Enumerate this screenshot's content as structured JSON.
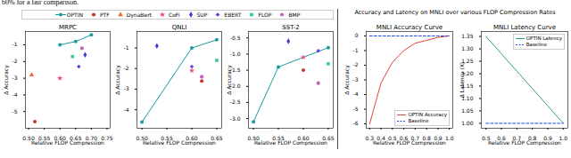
{
  "caption_fragment": "60% for a fair comparison.",
  "panel_title": "Accuracy and Latency on MNLI over various FLOP Compression Rates",
  "chart_data": [
    {
      "type": "scatter",
      "title": "MRPC",
      "xlabel": "Relative FLOP Compression",
      "ylabel": "Δ Accuracy",
      "xlim": [
        0.49,
        0.76
      ],
      "xticks": [
        {
          "value": 0.5,
          "label": "0.50"
        },
        {
          "value": 0.55,
          "label": "0.55"
        },
        {
          "value": 0.6,
          "label": "0.60"
        },
        {
          "value": 0.65,
          "label": "0.65"
        },
        {
          "value": 0.7,
          "label": "0.70"
        },
        {
          "value": 0.75,
          "label": "0.75"
        }
      ],
      "ylim": [
        -6.0,
        -0.2
      ],
      "yticks": [
        -1,
        -2,
        -3,
        -4,
        -5
      ],
      "legend": "top",
      "series": [
        {
          "name": "OPTIN",
          "type": "line",
          "color": "#1a9c9c",
          "marker": "circle",
          "x": [
            0.6,
            0.65,
            0.7
          ],
          "values": [
            -1.0,
            -0.8,
            -0.4
          ]
        },
        {
          "name": "PTF",
          "type": "scatter",
          "color": "#c0392b",
          "marker": "circle",
          "x": [
            0.52
          ],
          "values": [
            -5.6
          ]
        },
        {
          "name": "DynaBert",
          "type": "scatter",
          "color": "#e8702a",
          "marker": "triangle",
          "x": [
            0.51
          ],
          "values": [
            -2.8
          ]
        },
        {
          "name": "CoFi",
          "type": "scatter",
          "color": "#e74c8b",
          "marker": "star",
          "x": [
            0.6
          ],
          "values": [
            -3.0
          ]
        },
        {
          "name": "SUP",
          "type": "scatter",
          "color": "#3b3bd6",
          "marker": "diamond",
          "x": [
            0.68
          ],
          "values": [
            -1.6
          ]
        },
        {
          "name": "EBERT",
          "type": "scatter",
          "color": "#6a3fd6",
          "marker": "diamond2",
          "x": [
            0.66
          ],
          "values": [
            -2.3
          ]
        },
        {
          "name": "FLOP",
          "type": "scatter",
          "color": "#2ecc9a",
          "marker": "square",
          "x": [
            0.64
          ],
          "values": [
            -1.7
          ]
        },
        {
          "name": "BMP",
          "type": "scatter",
          "color": "#c266c2",
          "marker": "hexagon",
          "x": [
            0.67
          ],
          "values": [
            -1.2
          ]
        }
      ]
    },
    {
      "type": "scatter",
      "title": "QNLI",
      "xlabel": "Relative FLOP Compression",
      "ylabel": "Δ Accuracy",
      "xlim": [
        0.49,
        0.66
      ],
      "xticks": [
        {
          "value": 0.5,
          "label": "0.50"
        },
        {
          "value": 0.55,
          "label": "0.55"
        },
        {
          "value": 0.6,
          "label": "0.60"
        },
        {
          "value": 0.65,
          "label": "0.65"
        }
      ],
      "ylim": [
        -4.9,
        -0.2
      ],
      "yticks": [
        -1,
        -2,
        -3,
        -4
      ],
      "series": [
        {
          "name": "OPTIN",
          "type": "line",
          "color": "#1a9c9c",
          "marker": "circle",
          "x": [
            0.5,
            0.6,
            0.65
          ],
          "values": [
            -4.6,
            -1.0,
            -0.6
          ]
        },
        {
          "name": "SUP",
          "type": "scatter",
          "color": "#3b3bd6",
          "marker": "diamond",
          "x": [
            0.53
          ],
          "values": [
            -0.9
          ]
        },
        {
          "name": "EBERT",
          "type": "scatter",
          "color": "#6a3fd6",
          "marker": "diamond2",
          "x": [
            0.6
          ],
          "values": [
            -1.9
          ]
        },
        {
          "name": "CoFi",
          "type": "scatter",
          "color": "#e74c8b",
          "marker": "star",
          "x": [
            0.6
          ],
          "values": [
            -2.1
          ]
        },
        {
          "name": "FLOP",
          "type": "scatter",
          "color": "#2ecc9a",
          "marker": "square",
          "x": [
            0.65
          ],
          "values": [
            -1.6
          ]
        },
        {
          "name": "BMP",
          "type": "scatter",
          "color": "#c266c2",
          "marker": "hexagon",
          "x": [
            0.62
          ],
          "values": [
            -2.4
          ]
        },
        {
          "name": "PTF",
          "type": "scatter",
          "color": "#c0392b",
          "marker": "circle",
          "x": [
            0.62
          ],
          "values": [
            -2.6
          ]
        }
      ]
    },
    {
      "type": "scatter",
      "title": "SST-2",
      "xlabel": "Relative FLOP Compression",
      "ylabel": "Δ Accuracy",
      "xlim": [
        0.49,
        0.66
      ],
      "xticks": [
        {
          "value": 0.5,
          "label": "0.50"
        },
        {
          "value": 0.55,
          "label": "0.55"
        },
        {
          "value": 0.6,
          "label": "0.60"
        },
        {
          "value": 0.65,
          "label": "0.65"
        }
      ],
      "ylim": [
        -3.3,
        -0.3
      ],
      "yticks": [
        -0.5,
        {
          "value": -1,
          "label": "-1.0"
        },
        -1.5,
        {
          "value": -2,
          "label": "-2.0"
        },
        -2.5,
        {
          "value": -3,
          "label": "-3.0"
        }
      ],
      "series": [
        {
          "name": "OPTIN",
          "type": "line",
          "color": "#1a9c9c",
          "marker": "circle",
          "x": [
            0.5,
            0.55,
            0.65
          ],
          "values": [
            -3.1,
            -1.4,
            -0.8
          ]
        },
        {
          "name": "SUP",
          "type": "scatter",
          "color": "#3b3bd6",
          "marker": "diamond",
          "x": [
            0.57
          ],
          "values": [
            -0.6
          ]
        },
        {
          "name": "EBERT",
          "type": "scatter",
          "color": "#6a3fd6",
          "marker": "diamond2",
          "x": [
            0.63
          ],
          "values": [
            -0.9
          ]
        },
        {
          "name": "CoFi",
          "type": "scatter",
          "color": "#e74c8b",
          "marker": "star",
          "x": [
            0.6
          ],
          "values": [
            -1.1
          ]
        },
        {
          "name": "FLOP",
          "type": "scatter",
          "color": "#2ecc9a",
          "marker": "square",
          "x": [
            0.65
          ],
          "values": [
            -1.3
          ]
        },
        {
          "name": "PTF",
          "type": "scatter",
          "color": "#c0392b",
          "marker": "circle",
          "x": [
            0.6
          ],
          "values": [
            -1.5
          ]
        },
        {
          "name": "BMP",
          "type": "scatter",
          "color": "#c266c2",
          "marker": "hexagon",
          "x": [
            0.63
          ],
          "values": [
            -1.9
          ]
        }
      ]
    },
    {
      "type": "line",
      "title": "MNLI Accuracy Curve",
      "xlabel": "Relative FLOP Compression",
      "ylabel": "Δ Accuracy",
      "xlim": [
        0.27,
        1.03
      ],
      "xticks": [
        0.3,
        0.4,
        0.5,
        0.6,
        0.7,
        0.8,
        0.9,
        {
          "value": 1.0,
          "label": "1.0"
        }
      ],
      "ylim": [
        -6.3,
        0.3
      ],
      "yticks": [
        0,
        -1,
        -2,
        -3,
        -4,
        -5,
        -6
      ],
      "legend": "lower right",
      "series": [
        {
          "name": "OPTIN Accuracy",
          "type": "line",
          "color": "#e0443a",
          "line_style": "solid",
          "x": [
            0.3,
            0.4,
            0.5,
            0.6,
            0.7,
            0.8,
            0.9,
            1.0
          ],
          "values": [
            -6.0,
            -3.2,
            -1.8,
            -1.0,
            -0.5,
            -0.3,
            -0.1,
            0.0
          ]
        },
        {
          "name": "Baseline",
          "type": "line",
          "color": "#1f4fd6",
          "line_style": "dashed",
          "x": [
            0.3,
            1.0
          ],
          "values": [
            0,
            0
          ]
        }
      ]
    },
    {
      "type": "line",
      "title": "MNLI Latency Curve",
      "xlabel": "Relative FLOP Compression",
      "ylabel": "Δ Latency (X)",
      "xlim": [
        0.47,
        1.03
      ],
      "xticks": [
        0.5,
        0.6,
        0.7,
        0.8,
        0.9,
        {
          "value": 1.0,
          "label": "1.0"
        }
      ],
      "ylim": [
        0.98,
        1.37
      ],
      "yticks": [
        {
          "value": 1.0,
          "label": "1.00"
        },
        1.05,
        {
          "value": 1.1,
          "label": "1.10"
        },
        1.15,
        {
          "value": 1.2,
          "label": "1.20"
        },
        1.25,
        {
          "value": 1.3,
          "label": "1.30"
        },
        1.35
      ],
      "legend": "upper right",
      "series": [
        {
          "name": "OPTIN Latency",
          "type": "line",
          "color": "#2a9d8f",
          "line_style": "solid",
          "x": [
            0.5,
            0.6,
            0.7,
            0.8,
            0.9,
            1.0
          ],
          "values": [
            1.35,
            1.28,
            1.21,
            1.14,
            1.07,
            1.0
          ]
        },
        {
          "name": "Baseline",
          "type": "line",
          "color": "#1f4fd6",
          "line_style": "dashed",
          "x": [
            0.5,
            1.0
          ],
          "values": [
            1,
            1
          ]
        }
      ]
    }
  ]
}
